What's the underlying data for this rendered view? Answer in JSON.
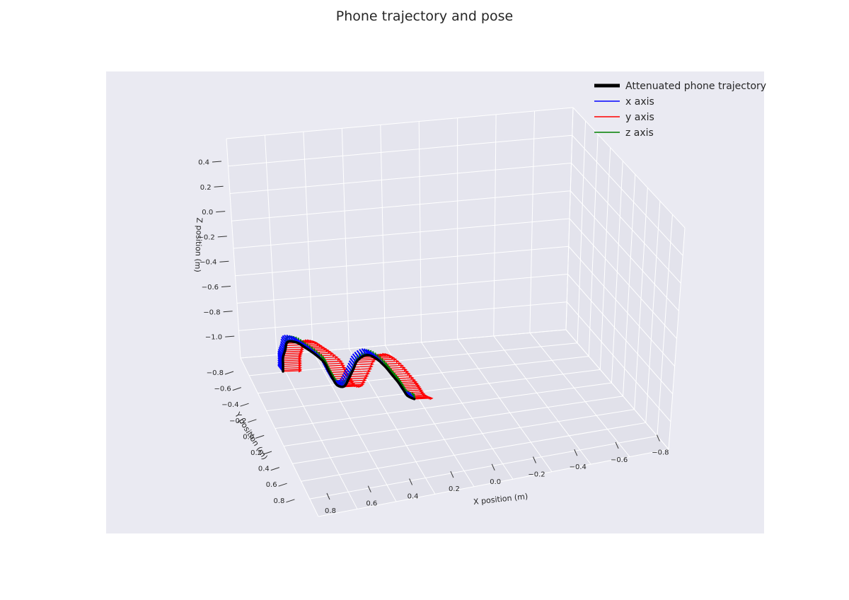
{
  "chart_data": {
    "type": "line",
    "title": "Phone trajectory and pose",
    "xlabel": "X position (m)",
    "ylabel": "Y position (m)",
    "zlabel": "Z position (m)",
    "x_ticks": [
      "0.8",
      "0.6",
      "0.4",
      "0.2",
      "0.0",
      "−0.2",
      "−0.4",
      "−0.6",
      "−0.8"
    ],
    "y_ticks": [
      "−0.8",
      "−0.6",
      "−0.4",
      "−0.2",
      "0.0",
      "0.2",
      "0.4",
      "0.6",
      "0.8"
    ],
    "z_ticks": [
      "0.4",
      "0.2",
      "0.0",
      "−0.2",
      "−0.4",
      "−0.6",
      "−0.8",
      "−1.0"
    ],
    "xlim": [
      0.9,
      -0.9
    ],
    "ylim": [
      -0.9,
      0.9
    ],
    "zlim": [
      -1.1,
      0.5
    ],
    "grid": true,
    "legend_position": "top-right",
    "colors": {
      "trajectory": "#000000",
      "x_axis": "#0000ff",
      "y_axis": "#ff0000",
      "z_axis": "#008000",
      "pane": "#eaeaf2",
      "grid": "#ffffff"
    },
    "series": [
      {
        "name": "Attenuated phone trajectory",
        "points": [
          [
            0.0,
            0.0,
            -0.4
          ],
          [
            0.0,
            0.0,
            -0.2
          ],
          [
            0.0,
            0.0,
            0.0
          ],
          [
            -0.01,
            0.0,
            0.2
          ],
          [
            -0.02,
            0.0,
            0.42
          ],
          [
            -0.06,
            0.0,
            0.38
          ],
          [
            -0.1,
            0.0,
            0.2
          ],
          [
            -0.14,
            0.0,
            0.0
          ],
          [
            -0.18,
            0.0,
            -0.25
          ],
          [
            -0.2,
            0.0,
            -0.5
          ],
          [
            -0.22,
            0.0,
            -0.75
          ],
          [
            -0.24,
            0.0,
            -0.95
          ],
          [
            -0.27,
            0.0,
            -1.0
          ],
          [
            -0.29,
            0.0,
            -0.8
          ],
          [
            -0.31,
            0.0,
            -0.55
          ],
          [
            -0.33,
            0.0,
            -0.3
          ],
          [
            -0.37,
            0.0,
            -0.18
          ],
          [
            -0.41,
            0.0,
            -0.3
          ],
          [
            -0.45,
            0.0,
            -0.55
          ],
          [
            -0.48,
            0.0,
            -0.8
          ],
          [
            -0.51,
            0.0,
            -1.05
          ],
          [
            -0.53,
            0.0,
            -1.25
          ],
          [
            -0.55,
            0.0,
            -1.45
          ],
          [
            -0.58,
            0.0,
            -1.56
          ]
        ]
      },
      {
        "name": "x axis"
      },
      {
        "name": "y axis"
      },
      {
        "name": "z axis"
      }
    ]
  }
}
